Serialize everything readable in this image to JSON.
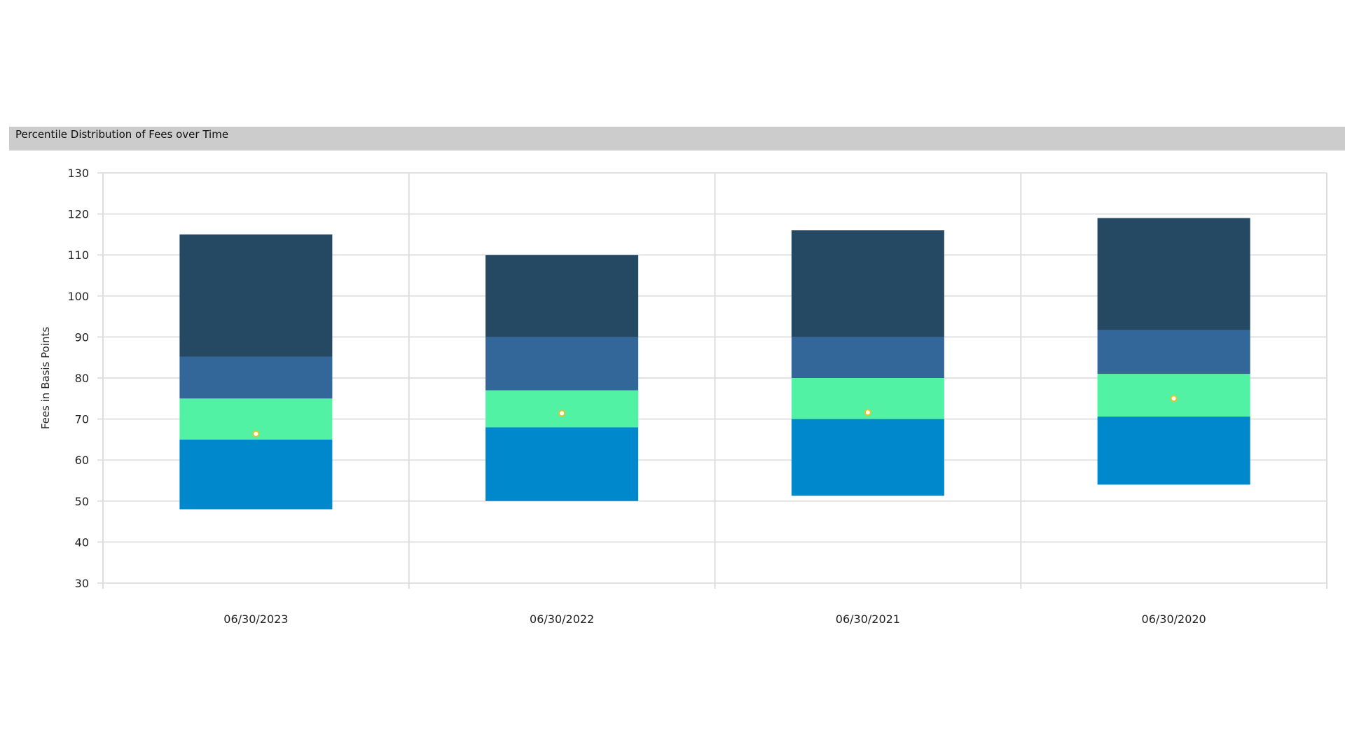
{
  "chart_data": {
    "type": "bar",
    "subtype": "floating-stacked-range",
    "title": "Percentile Distribution of Fees over Time",
    "xlabel": "",
    "ylabel": "Fees in Basis Points",
    "ylim": [
      30,
      130
    ],
    "yticks": [
      30,
      40,
      50,
      60,
      70,
      80,
      90,
      100,
      110,
      120,
      130
    ],
    "grid": true,
    "legend": "none",
    "categories": [
      "06/30/2023",
      "06/30/2022",
      "06/30/2021",
      "06/30/2020"
    ],
    "series": [
      {
        "color": "#0088cc",
        "ranges": [
          [
            48,
            65
          ],
          [
            50,
            68
          ],
          [
            51.3,
            70
          ],
          [
            54,
            70.6
          ]
        ]
      },
      {
        "color": "#52f2a4",
        "ranges": [
          [
            65,
            75
          ],
          [
            68,
            77
          ],
          [
            70,
            80
          ],
          [
            70.6,
            81
          ]
        ]
      },
      {
        "color": "#336699",
        "ranges": [
          [
            75,
            85.2
          ],
          [
            77,
            90
          ],
          [
            80,
            90
          ],
          [
            81,
            91.7
          ]
        ]
      },
      {
        "color": "#254863",
        "ranges": [
          [
            85.2,
            115
          ],
          [
            90,
            110
          ],
          [
            90,
            116
          ],
          [
            91.7,
            119
          ]
        ]
      }
    ],
    "markers": {
      "fill": "#ffffff",
      "stroke": "#e6c229",
      "values": [
        66.4,
        71.4,
        71.6,
        75
      ]
    }
  }
}
